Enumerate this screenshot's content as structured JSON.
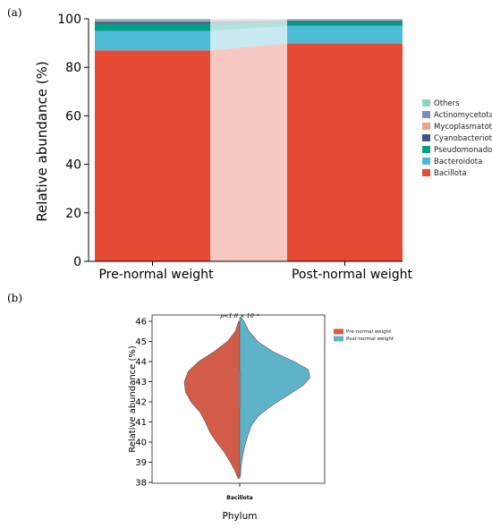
{
  "panels": {
    "a": {
      "label": "(a)"
    },
    "b": {
      "label": "(b)"
    }
  },
  "colors": {
    "Others": "#8fd5c3",
    "Actinomycetota": "#7c8fbb",
    "Mycoplasmatota": "#f0a08c",
    "Cyanobacteriota": "#3d5488",
    "Pseudomonadota": "#00a087",
    "Bacteroidota": "#4dbbd5",
    "Bacillota": "#e64b35",
    "pre_violin": "#d25c48",
    "post_violin": "#5fb3c8"
  },
  "chart_data": [
    {
      "type": "bar",
      "stacked": true,
      "title": "",
      "xlabel": "",
      "ylabel": "Relative abundance (%)",
      "ylim": [
        0,
        100
      ],
      "yticks": [
        "0",
        "20",
        "40",
        "60",
        "80",
        "100"
      ],
      "categories": [
        "Pre-normal weight",
        "Post-normal weight"
      ],
      "legend_position": "right",
      "series": [
        {
          "name": "Bacillota",
          "values": [
            87.0,
            89.8
          ]
        },
        {
          "name": "Bacteroidota",
          "values": [
            8.0,
            7.3
          ]
        },
        {
          "name": "Pseudomonadota",
          "values": [
            3.0,
            1.6
          ]
        },
        {
          "name": "Cyanobacteriota",
          "values": [
            0.8,
            0.5
          ]
        },
        {
          "name": "Mycoplasmatota",
          "values": [
            0.3,
            0.2
          ]
        },
        {
          "name": "Actinomycetota",
          "values": [
            0.4,
            0.3
          ]
        },
        {
          "name": "Others",
          "values": [
            0.5,
            0.3
          ]
        }
      ],
      "legend_order": [
        "Others",
        "Actinomycetota",
        "Mycoplasmatota",
        "Cyanobacteriota",
        "Pseudomonadota",
        "Bacteroidota",
        "Bacillota"
      ]
    },
    {
      "type": "violin",
      "split": true,
      "title": "",
      "xlabel": "Phylum",
      "ylabel": "Relative abundance (%)",
      "ylim": [
        38,
        46
      ],
      "yticks": [
        "38",
        "39",
        "40",
        "41",
        "42",
        "43",
        "44",
        "45",
        "46"
      ],
      "category": "Bacillota",
      "annotation": "p<1.8 × 10⁻⁶",
      "legend_position": "right",
      "series": [
        {
          "name": "Pre-normal weight",
          "side": "left",
          "density": [
            [
              38.2,
              0.03
            ],
            [
              38.6,
              0.09
            ],
            [
              39.0,
              0.17
            ],
            [
              39.5,
              0.28
            ],
            [
              40.0,
              0.42
            ],
            [
              40.5,
              0.54
            ],
            [
              41.0,
              0.62
            ],
            [
              41.5,
              0.72
            ],
            [
              42.0,
              0.88
            ],
            [
              42.5,
              0.98
            ],
            [
              43.0,
              1.0
            ],
            [
              43.5,
              0.93
            ],
            [
              44.0,
              0.74
            ],
            [
              44.5,
              0.46
            ],
            [
              45.0,
              0.22
            ],
            [
              45.5,
              0.08
            ],
            [
              46.0,
              0.02
            ]
          ]
        },
        {
          "name": "Post-normal weight",
          "side": "right",
          "density": [
            [
              38.3,
              0.01
            ],
            [
              38.8,
              0.02
            ],
            [
              39.3,
              0.04
            ],
            [
              39.8,
              0.07
            ],
            [
              40.3,
              0.11
            ],
            [
              40.8,
              0.16
            ],
            [
              41.3,
              0.26
            ],
            [
              41.8,
              0.44
            ],
            [
              42.3,
              0.66
            ],
            [
              42.8,
              0.88
            ],
            [
              43.2,
              0.98
            ],
            [
              43.6,
              0.96
            ],
            [
              44.0,
              0.76
            ],
            [
              44.5,
              0.46
            ],
            [
              45.0,
              0.25
            ],
            [
              45.5,
              0.13
            ],
            [
              46.0,
              0.06
            ],
            [
              46.2,
              0.02
            ]
          ]
        }
      ],
      "box": {
        "q1": 41.7,
        "q3": 43.6
      }
    }
  ]
}
